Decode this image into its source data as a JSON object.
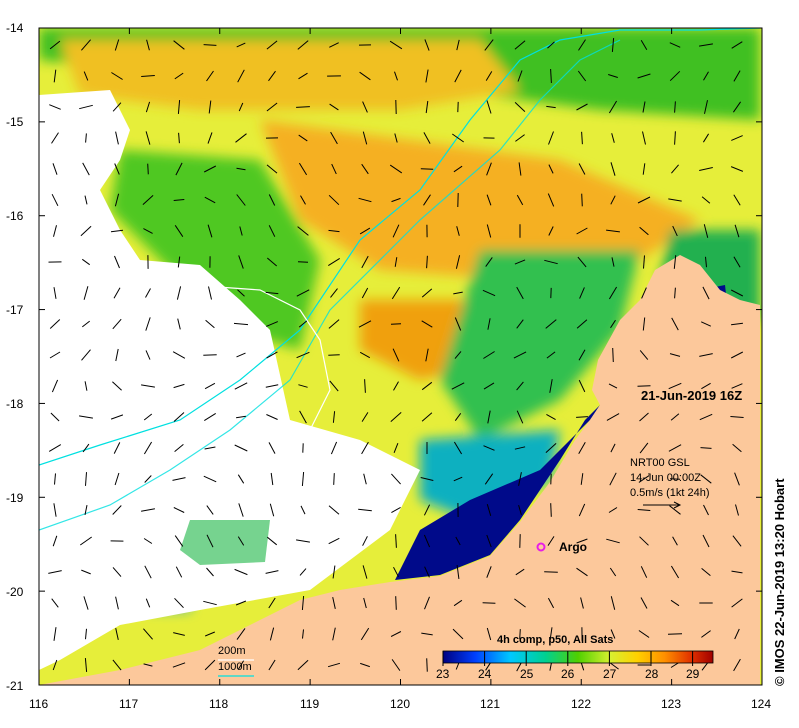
{
  "title_datetime": "21-Jun-2019 16Z",
  "credit": "© IMOS 22-Jun-2019 13:20 Hobart",
  "axes": {
    "longitude_ticks": [
      "116",
      "117",
      "118",
      "119",
      "120",
      "121",
      "122",
      "123",
      "124"
    ],
    "latitude_ticks": [
      "-14",
      "-15",
      "-16",
      "-17",
      "-18",
      "-19",
      "-20",
      "-21"
    ],
    "lon_range": [
      116,
      124
    ],
    "lat_range": [
      -21,
      -14
    ]
  },
  "current_legend": {
    "line1": "NRT00 GSL",
    "line2": "14-Jun 00:00Z",
    "line3": "0.5m/s (1kt 24h)"
  },
  "argo": {
    "label": "Argo",
    "lon": 121.6,
    "lat": -19.5,
    "color": "#e81de8"
  },
  "isobath_legend": {
    "shallow": "200m",
    "deep": "1000m",
    "shallow_color": "#ffffff",
    "deep_color": "#00e0e0"
  },
  "colorbar": {
    "title": "4h comp, p50, All Sats",
    "ticks": [
      "23",
      "24",
      "25",
      "26",
      "27",
      "28",
      "29"
    ],
    "range": [
      23,
      29.5
    ],
    "colors": [
      "#000080",
      "#0050ff",
      "#00d0ff",
      "#00d080",
      "#50d000",
      "#d8f030",
      "#ffd000",
      "#ff9000",
      "#e03000",
      "#a00000"
    ]
  },
  "colors": {
    "land": "#fcc89b",
    "cloud": "#ffffff",
    "frame": "#000000"
  }
}
